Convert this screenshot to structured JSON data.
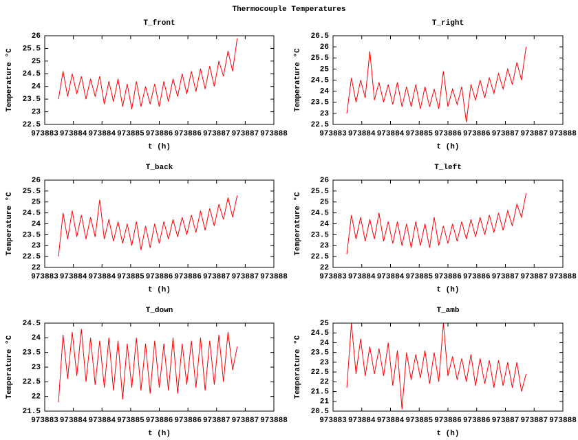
{
  "title": "Thermocouple Temperatures",
  "chart_data": [
    {
      "type": "line",
      "title": "T_front",
      "xlabel": "t (h)",
      "ylabel": "Temperature °C",
      "x": [
        973883.3,
        973883.4,
        973883.5,
        973883.6,
        973883.7,
        973883.8,
        973883.9,
        973884.0,
        973884.1,
        973884.2,
        973884.3,
        973884.4,
        973884.5,
        973884.6,
        973884.7,
        973884.8,
        973884.9,
        973885.0,
        973885.1,
        973885.2,
        973885.3,
        973885.4,
        973885.5,
        973885.6,
        973885.7,
        973885.8,
        973885.9,
        973886.0,
        973886.1,
        973886.2,
        973886.3,
        973886.4,
        973886.5,
        973886.6,
        973886.7,
        973886.8,
        973886.9,
        973887.0,
        973887.1,
        973887.2
      ],
      "series": [
        {
          "color": "#ff0000",
          "values": [
            23.5,
            24.6,
            23.6,
            24.5,
            23.7,
            24.4,
            23.5,
            24.3,
            23.6,
            24.4,
            23.3,
            24.2,
            23.4,
            24.3,
            23.2,
            24.1,
            23.1,
            24.2,
            23.2,
            24.0,
            23.3,
            24.1,
            23.2,
            24.2,
            23.4,
            24.3,
            23.6,
            24.5,
            23.7,
            24.6,
            23.8,
            24.7,
            23.9,
            24.8,
            24.0,
            25.0,
            24.4,
            25.4,
            24.6,
            25.9
          ]
        }
      ],
      "xlim": [
        973883,
        973888
      ],
      "xticks": [
        973883,
        {
          "value": 973883.625,
          "label": "973884"
        },
        {
          "value": 973884.25,
          "label": "973884"
        },
        {
          "value": 973884.875,
          "label": "973885"
        },
        {
          "value": 973885.5,
          "label": "973886"
        },
        {
          "value": 973886.125,
          "label": "973886"
        },
        {
          "value": 973886.75,
          "label": "973887"
        },
        {
          "value": 973887.375,
          "label": "973887"
        },
        973888
      ],
      "ylim": [
        22.5,
        26
      ],
      "yticks": [
        22.5,
        23,
        23.5,
        24,
        24.5,
        25,
        25.5,
        26
      ]
    },
    {
      "type": "line",
      "title": "T_right",
      "xlabel": "t (h)",
      "ylabel": "Temperature °C",
      "x": [
        973883.3,
        973883.4,
        973883.5,
        973883.6,
        973883.7,
        973883.8,
        973883.9,
        973884.0,
        973884.1,
        973884.2,
        973884.3,
        973884.4,
        973884.5,
        973884.6,
        973884.7,
        973884.8,
        973884.9,
        973885.0,
        973885.1,
        973885.2,
        973885.3,
        973885.4,
        973885.5,
        973885.6,
        973885.7,
        973885.8,
        973885.9,
        973886.0,
        973886.1,
        973886.2,
        973886.3,
        973886.4,
        973886.5,
        973886.6,
        973886.7,
        973886.8,
        973886.9,
        973887.0,
        973887.1,
        973887.2
      ],
      "series": [
        {
          "color": "#ff0000",
          "values": [
            23.0,
            24.6,
            23.5,
            24.5,
            23.7,
            25.8,
            23.6,
            24.4,
            23.5,
            24.3,
            23.4,
            24.4,
            23.3,
            24.2,
            23.3,
            24.3,
            23.2,
            24.2,
            23.3,
            24.1,
            23.2,
            24.9,
            23.3,
            24.1,
            23.4,
            24.2,
            22.6,
            24.3,
            23.6,
            24.5,
            23.7,
            24.6,
            23.9,
            24.8,
            24.1,
            25.0,
            24.3,
            25.3,
            24.5,
            26.0
          ]
        }
      ],
      "xlim": [
        973883,
        973888
      ],
      "xticks": [
        973883,
        {
          "value": 973883.625,
          "label": "973884"
        },
        {
          "value": 973884.25,
          "label": "973884"
        },
        {
          "value": 973884.875,
          "label": "973885"
        },
        {
          "value": 973885.5,
          "label": "973886"
        },
        {
          "value": 973886.125,
          "label": "973886"
        },
        {
          "value": 973886.75,
          "label": "973887"
        },
        {
          "value": 973887.375,
          "label": "973887"
        },
        973888
      ],
      "ylim": [
        22.5,
        26.5
      ],
      "yticks": [
        22.5,
        23,
        23.5,
        24,
        24.5,
        25,
        25.5,
        26,
        26.5
      ]
    },
    {
      "type": "line",
      "title": "T_back",
      "xlabel": "t (h)",
      "ylabel": "Temperature °C",
      "x": [
        973883.3,
        973883.4,
        973883.5,
        973883.6,
        973883.7,
        973883.8,
        973883.9,
        973884.0,
        973884.1,
        973884.2,
        973884.3,
        973884.4,
        973884.5,
        973884.6,
        973884.7,
        973884.8,
        973884.9,
        973885.0,
        973885.1,
        973885.2,
        973885.3,
        973885.4,
        973885.5,
        973885.6,
        973885.7,
        973885.8,
        973885.9,
        973886.0,
        973886.1,
        973886.2,
        973886.3,
        973886.4,
        973886.5,
        973886.6,
        973886.7,
        973886.8,
        973886.9,
        973887.0,
        973887.1,
        973887.2
      ],
      "series": [
        {
          "color": "#ff0000",
          "values": [
            22.5,
            24.5,
            23.3,
            24.6,
            23.4,
            24.4,
            23.3,
            24.3,
            23.4,
            25.1,
            23.3,
            24.2,
            23.2,
            24.1,
            23.1,
            24.0,
            23.0,
            24.1,
            22.8,
            23.9,
            22.9,
            24.0,
            23.1,
            24.1,
            23.3,
            24.2,
            23.4,
            24.3,
            23.5,
            24.4,
            23.6,
            24.6,
            23.7,
            24.7,
            23.9,
            24.9,
            24.2,
            25.2,
            24.3,
            25.3
          ]
        }
      ],
      "xlim": [
        973883,
        973888
      ],
      "xticks": [
        973883,
        {
          "value": 973883.625,
          "label": "973884"
        },
        {
          "value": 973884.25,
          "label": "973884"
        },
        {
          "value": 973884.875,
          "label": "973885"
        },
        {
          "value": 973885.5,
          "label": "973886"
        },
        {
          "value": 973886.125,
          "label": "973886"
        },
        {
          "value": 973886.75,
          "label": "973887"
        },
        {
          "value": 973887.375,
          "label": "973887"
        },
        973888
      ],
      "ylim": [
        22,
        26
      ],
      "yticks": [
        22,
        22.5,
        23,
        23.5,
        24,
        24.5,
        25,
        25.5,
        26
      ]
    },
    {
      "type": "line",
      "title": "T_left",
      "xlabel": "t (h)",
      "ylabel": "Temperature °C",
      "x": [
        973883.3,
        973883.4,
        973883.5,
        973883.6,
        973883.7,
        973883.8,
        973883.9,
        973884.0,
        973884.1,
        973884.2,
        973884.3,
        973884.4,
        973884.5,
        973884.6,
        973884.7,
        973884.8,
        973884.9,
        973885.0,
        973885.1,
        973885.2,
        973885.3,
        973885.4,
        973885.5,
        973885.6,
        973885.7,
        973885.8,
        973885.9,
        973886.0,
        973886.1,
        973886.2,
        973886.3,
        973886.4,
        973886.5,
        973886.6,
        973886.7,
        973886.8,
        973886.9,
        973887.0,
        973887.1,
        973887.2
      ],
      "series": [
        {
          "color": "#ff0000",
          "values": [
            22.6,
            24.4,
            23.3,
            24.3,
            23.2,
            24.2,
            23.3,
            24.5,
            23.2,
            24.1,
            23.1,
            24.1,
            23.0,
            24.0,
            22.9,
            24.1,
            23.0,
            24.0,
            22.9,
            24.3,
            23.0,
            23.9,
            23.1,
            24.0,
            23.2,
            24.1,
            23.3,
            24.2,
            23.4,
            24.3,
            23.5,
            24.4,
            23.6,
            24.5,
            23.7,
            24.6,
            23.9,
            24.9,
            24.3,
            25.4
          ]
        }
      ],
      "xlim": [
        973883,
        973888
      ],
      "xticks": [
        973883,
        {
          "value": 973883.625,
          "label": "973884"
        },
        {
          "value": 973884.25,
          "label": "973884"
        },
        {
          "value": 973884.875,
          "label": "973885"
        },
        {
          "value": 973885.5,
          "label": "973886"
        },
        {
          "value": 973886.125,
          "label": "973886"
        },
        {
          "value": 973886.75,
          "label": "973887"
        },
        {
          "value": 973887.375,
          "label": "973887"
        },
        973888
      ],
      "ylim": [
        22,
        26
      ],
      "yticks": [
        22,
        22.5,
        23,
        23.5,
        24,
        24.5,
        25,
        25.5,
        26
      ]
    },
    {
      "type": "line",
      "title": "T_down",
      "xlabel": "t (h)",
      "ylabel": "Temperature °C",
      "x": [
        973883.3,
        973883.4,
        973883.5,
        973883.6,
        973883.7,
        973883.8,
        973883.9,
        973884.0,
        973884.1,
        973884.2,
        973884.3,
        973884.4,
        973884.5,
        973884.6,
        973884.7,
        973884.8,
        973884.9,
        973885.0,
        973885.1,
        973885.2,
        973885.3,
        973885.4,
        973885.5,
        973885.6,
        973885.7,
        973885.8,
        973885.9,
        973886.0,
        973886.1,
        973886.2,
        973886.3,
        973886.4,
        973886.5,
        973886.6,
        973886.7,
        973886.8,
        973886.9,
        973887.0,
        973887.1,
        973887.2
      ],
      "series": [
        {
          "color": "#ff0000",
          "values": [
            21.8,
            24.1,
            22.6,
            24.2,
            22.7,
            24.3,
            22.5,
            24.0,
            22.4,
            23.9,
            22.3,
            24.0,
            22.2,
            23.9,
            21.9,
            23.8,
            22.3,
            24.0,
            22.2,
            23.8,
            22.1,
            23.9,
            22.3,
            23.8,
            22.2,
            24.0,
            22.1,
            23.8,
            22.4,
            23.9,
            22.3,
            24.0,
            22.2,
            23.9,
            22.4,
            24.1,
            22.5,
            24.2,
            22.9,
            23.7
          ]
        }
      ],
      "xlim": [
        973883,
        973888
      ],
      "xticks": [
        973883,
        {
          "value": 973883.625,
          "label": "973884"
        },
        {
          "value": 973884.25,
          "label": "973884"
        },
        {
          "value": 973884.875,
          "label": "973885"
        },
        {
          "value": 973885.5,
          "label": "973886"
        },
        {
          "value": 973886.125,
          "label": "973886"
        },
        {
          "value": 973886.75,
          "label": "973887"
        },
        {
          "value": 973887.375,
          "label": "973887"
        },
        973888
      ],
      "ylim": [
        21.5,
        24.5
      ],
      "yticks": [
        21.5,
        22,
        22.5,
        23,
        23.5,
        24,
        24.5
      ]
    },
    {
      "type": "line",
      "title": "T_amb",
      "xlabel": "t (h)",
      "ylabel": "Temperature °C",
      "x": [
        973883.3,
        973883.4,
        973883.5,
        973883.6,
        973883.7,
        973883.8,
        973883.9,
        973884.0,
        973884.1,
        973884.2,
        973884.3,
        973884.4,
        973884.5,
        973884.6,
        973884.7,
        973884.8,
        973884.9,
        973885.0,
        973885.1,
        973885.2,
        973885.3,
        973885.4,
        973885.5,
        973885.6,
        973885.7,
        973885.8,
        973885.9,
        973886.0,
        973886.1,
        973886.2,
        973886.3,
        973886.4,
        973886.5,
        973886.6,
        973886.7,
        973886.8,
        973886.9,
        973887.0,
        973887.1,
        973887.2
      ],
      "series": [
        {
          "color": "#ff0000",
          "values": [
            21.7,
            25.0,
            22.4,
            24.2,
            22.3,
            23.8,
            22.4,
            23.7,
            22.3,
            24.0,
            21.8,
            23.6,
            20.6,
            23.5,
            22.1,
            23.4,
            22.2,
            23.6,
            21.9,
            23.5,
            22.0,
            25.0,
            22.3,
            23.3,
            22.1,
            23.2,
            22.0,
            23.4,
            21.8,
            23.2,
            21.9,
            23.1,
            21.7,
            23.1,
            21.8,
            23.0,
            21.7,
            23.0,
            21.5,
            22.4
          ]
        }
      ],
      "xlim": [
        973883,
        973888
      ],
      "xticks": [
        973883,
        {
          "value": 973883.625,
          "label": "973884"
        },
        {
          "value": 973884.25,
          "label": "973884"
        },
        {
          "value": 973884.875,
          "label": "973885"
        },
        {
          "value": 973885.5,
          "label": "973886"
        },
        {
          "value": 973886.125,
          "label": "973886"
        },
        {
          "value": 973886.75,
          "label": "973887"
        },
        {
          "value": 973887.375,
          "label": "973887"
        },
        973888
      ],
      "ylim": [
        20.5,
        25
      ],
      "yticks": [
        20.5,
        21,
        21.5,
        22,
        22.5,
        23,
        23.5,
        24,
        24.5,
        25
      ]
    }
  ]
}
